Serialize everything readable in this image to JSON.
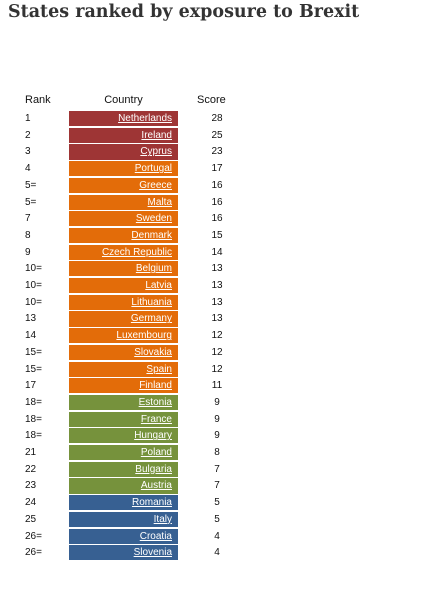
{
  "title": "States ranked by exposure to Brexit",
  "headers": {
    "rank": "Rank",
    "country": "Country",
    "score": "Score"
  },
  "tier_colors": {
    "1": "#9e3535",
    "2": "#e36c09",
    "3": "#76923c",
    "4": "#376092"
  },
  "chart_data": {
    "type": "table",
    "title": "States ranked by exposure to Brexit",
    "columns": [
      "Rank",
      "Country",
      "Score"
    ],
    "rows": [
      {
        "rank": "1",
        "country": "Netherlands",
        "score": 28,
        "tier": 1
      },
      {
        "rank": "2",
        "country": "Ireland",
        "score": 25,
        "tier": 1
      },
      {
        "rank": "3",
        "country": "Cyprus",
        "score": 23,
        "tier": 1
      },
      {
        "rank": "4",
        "country": "Portugal",
        "score": 17,
        "tier": 2
      },
      {
        "rank": "5=",
        "country": "Greece",
        "score": 16,
        "tier": 2
      },
      {
        "rank": "5=",
        "country": "Malta",
        "score": 16,
        "tier": 2
      },
      {
        "rank": "7",
        "country": "Sweden",
        "score": 16,
        "tier": 2
      },
      {
        "rank": "8",
        "country": "Denmark",
        "score": 15,
        "tier": 2
      },
      {
        "rank": "9",
        "country": "Czech Republic",
        "score": 14,
        "tier": 2
      },
      {
        "rank": "10=",
        "country": "Belgium",
        "score": 13,
        "tier": 2
      },
      {
        "rank": "10=",
        "country": "Latvia",
        "score": 13,
        "tier": 2
      },
      {
        "rank": "10=",
        "country": "Lithuania",
        "score": 13,
        "tier": 2
      },
      {
        "rank": "13",
        "country": "Germany",
        "score": 13,
        "tier": 2
      },
      {
        "rank": "14",
        "country": "Luxembourg",
        "score": 12,
        "tier": 2
      },
      {
        "rank": "15=",
        "country": "Slovakia",
        "score": 12,
        "tier": 2
      },
      {
        "rank": "15=",
        "country": "Spain",
        "score": 12,
        "tier": 2
      },
      {
        "rank": "17",
        "country": "Finland",
        "score": 11,
        "tier": 2
      },
      {
        "rank": "18=",
        "country": "Estonia",
        "score": 9,
        "tier": 3
      },
      {
        "rank": "18=",
        "country": "France",
        "score": 9,
        "tier": 3
      },
      {
        "rank": "18=",
        "country": "Hungary",
        "score": 9,
        "tier": 3
      },
      {
        "rank": "21",
        "country": "Poland",
        "score": 8,
        "tier": 3
      },
      {
        "rank": "22",
        "country": "Bulgaria",
        "score": 7,
        "tier": 3
      },
      {
        "rank": "23",
        "country": "Austria",
        "score": 7,
        "tier": 3
      },
      {
        "rank": "24",
        "country": "Romania",
        "score": 5,
        "tier": 4
      },
      {
        "rank": "25",
        "country": "Italy",
        "score": 5,
        "tier": 4
      },
      {
        "rank": "26=",
        "country": "Croatia",
        "score": 4,
        "tier": 4
      },
      {
        "rank": "26=",
        "country": "Slovenia",
        "score": 4,
        "tier": 4
      }
    ]
  }
}
